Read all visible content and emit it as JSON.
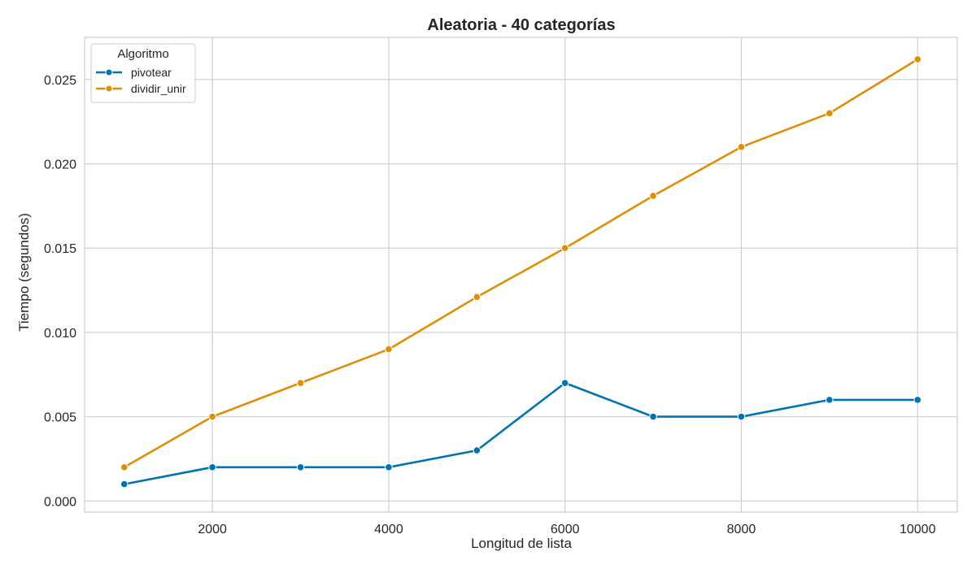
{
  "chart_data": {
    "type": "line",
    "title": "Aleatoria - 40 categorías",
    "xlabel": "Longitud de lista",
    "ylabel": "Tiempo (segundos)",
    "x": [
      1000,
      2000,
      3000,
      4000,
      5000,
      6000,
      7000,
      8000,
      9000,
      10000
    ],
    "xlim": [
      550,
      10450
    ],
    "ylim": [
      -0.00066,
      0.0275
    ],
    "xticks": [
      2000,
      4000,
      6000,
      8000,
      10000
    ],
    "xtick_labels": [
      "2000",
      "4000",
      "6000",
      "8000",
      "10000"
    ],
    "yticks": [
      0,
      0.005,
      0.01,
      0.015,
      0.02,
      0.025
    ],
    "ytick_labels": [
      "0.000",
      "0.005",
      "0.010",
      "0.015",
      "0.020",
      "0.025"
    ],
    "grid": true,
    "legend": {
      "title": "Algoritmo",
      "placement": "top-left"
    },
    "series": [
      {
        "name": "pivotear",
        "color": "#0173b2",
        "values": [
          0.001,
          0.002,
          0.002,
          0.002,
          0.003,
          0.007,
          0.005,
          0.005,
          0.006,
          0.006
        ]
      },
      {
        "name": "dividir_unir",
        "color": "#de8f05",
        "values": [
          0.002,
          0.005,
          0.007,
          0.009,
          0.0121,
          0.015,
          0.0181,
          0.021,
          0.023,
          0.0262
        ]
      }
    ]
  }
}
